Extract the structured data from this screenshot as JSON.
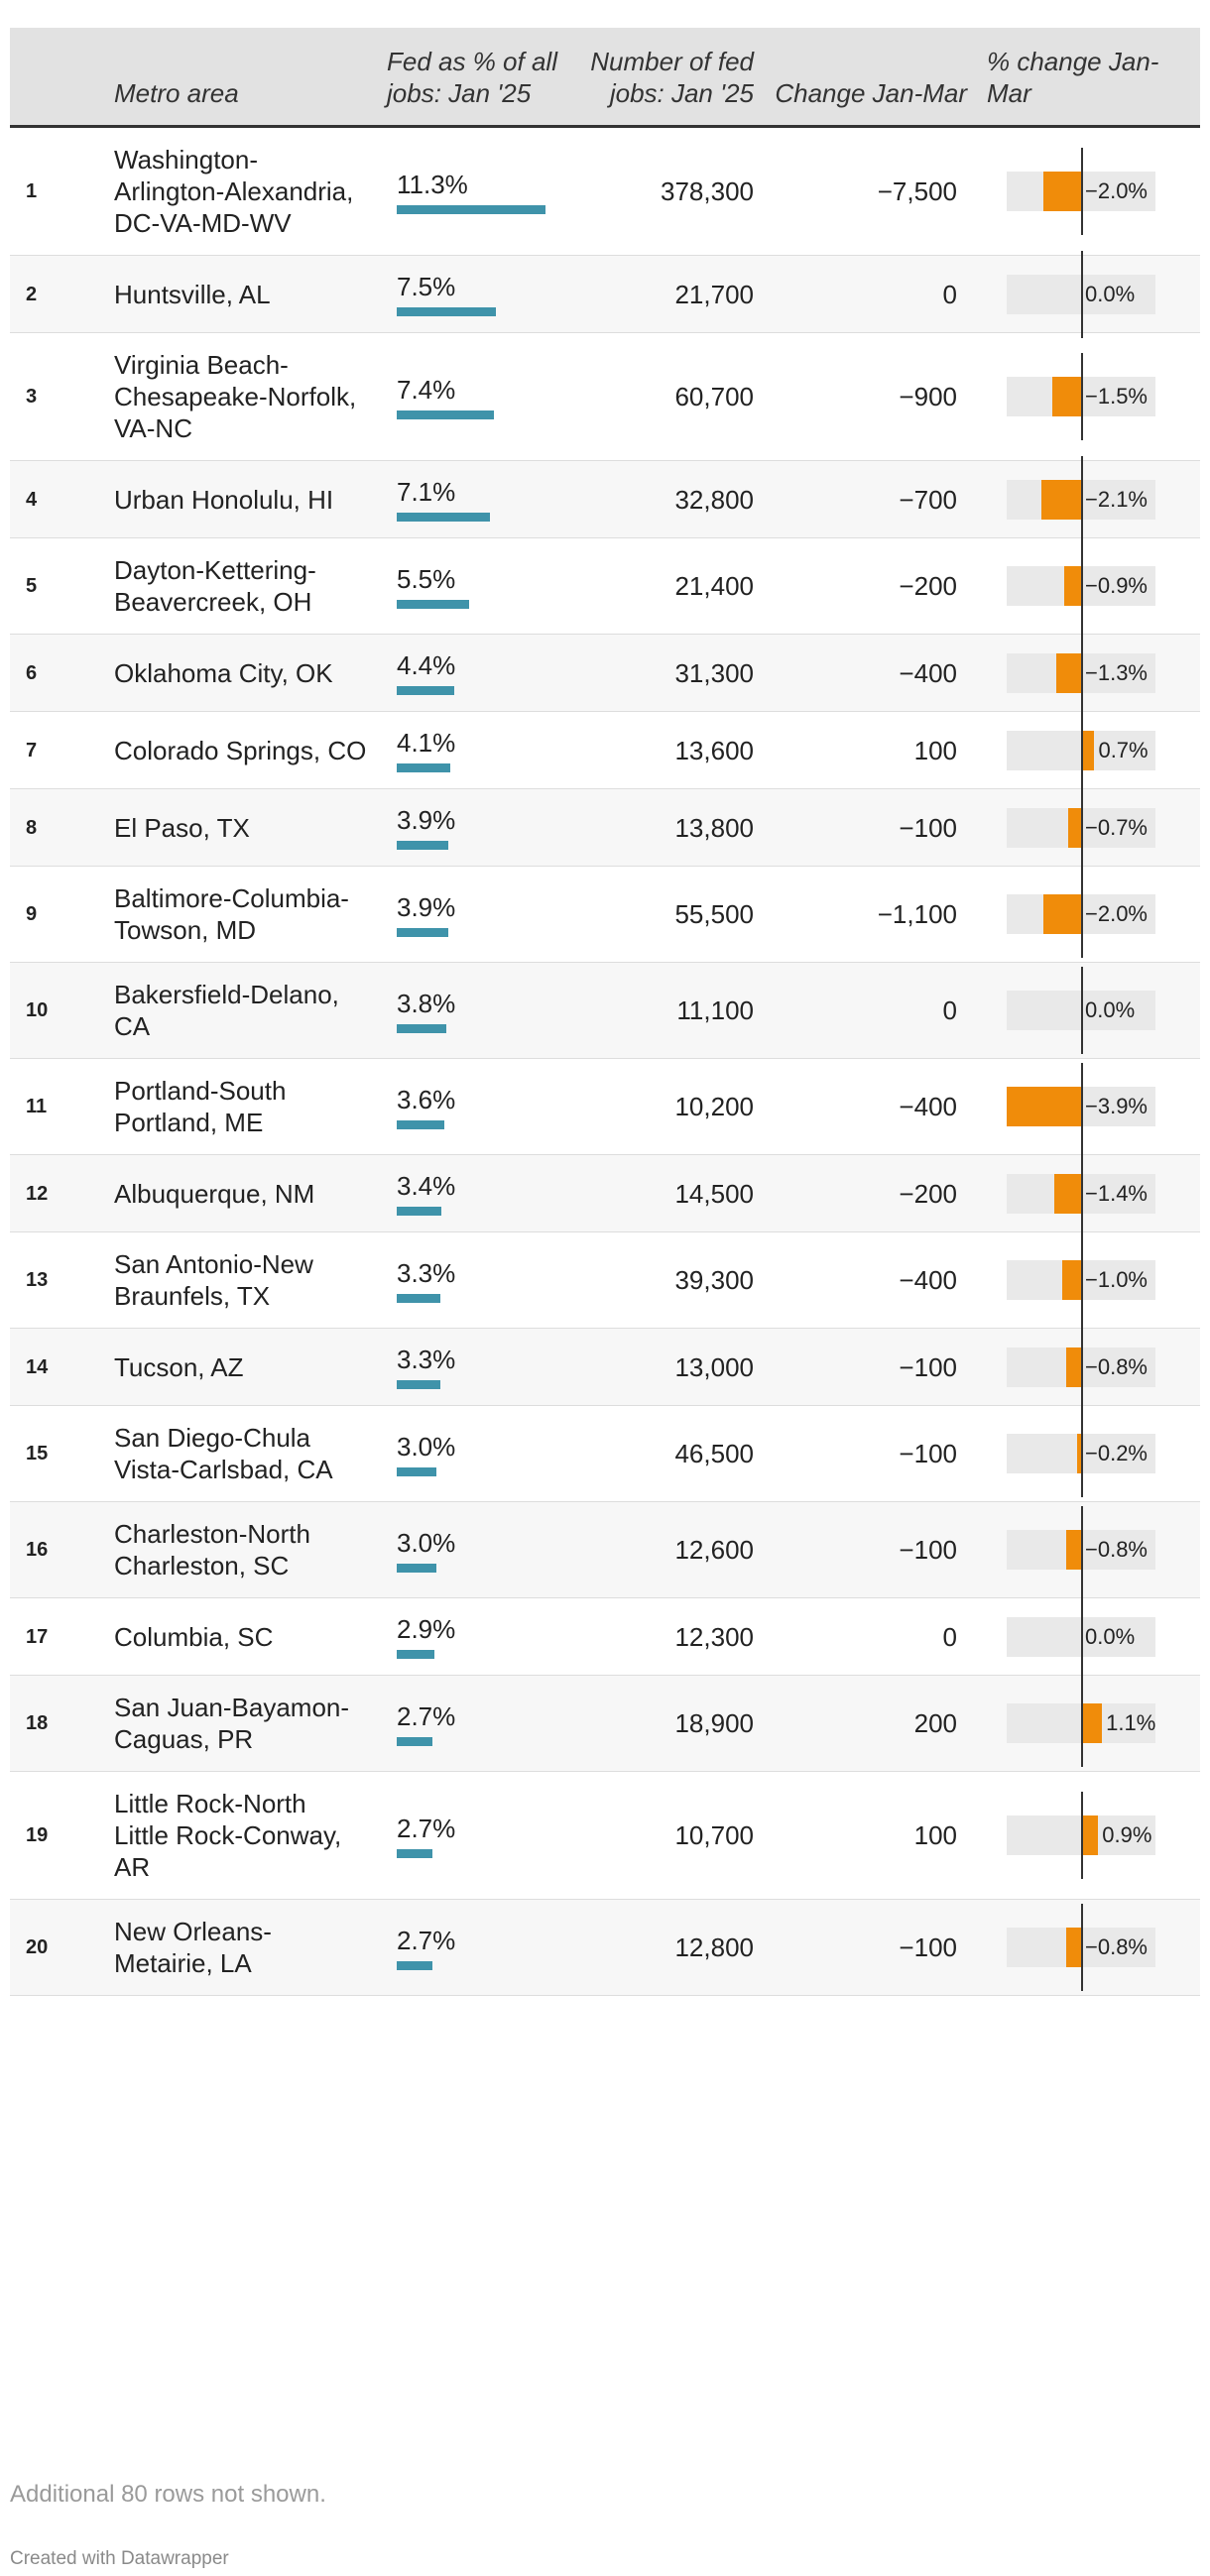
{
  "table": {
    "headers": {
      "rank": "",
      "metro": "Metro area",
      "fed_pct": "Fed as % of all jobs: Jan '25",
      "fed_jobs": "Number of fed jobs: Jan '25",
      "change": "Change Jan-Mar",
      "pct_change": "% change Jan-Mar"
    },
    "note": "Additional 80 rows not shown.",
    "credit": "Created with Datawrapper"
  },
  "colors": {
    "pct_bar": "#3f93aa",
    "change_bar": "#f08c0a",
    "header_bg": "#e2e2e2"
  },
  "chart_data": {
    "type": "table",
    "pct_bar_max": 11.3,
    "change_bar_range": [
      -3.9,
      3.9
    ],
    "rows": [
      {
        "rank": "1",
        "metro": "Washington-Arlington-Alexandria, DC-VA-MD-WV",
        "fed_pct": 11.3,
        "fed_pct_label": "11.3%",
        "fed_jobs": "378,300",
        "change": "−7,500",
        "pct_change": -2.0,
        "pct_change_label": "−2.0%"
      },
      {
        "rank": "2",
        "metro": "Huntsville, AL",
        "fed_pct": 7.5,
        "fed_pct_label": "7.5%",
        "fed_jobs": "21,700",
        "change": "0",
        "pct_change": 0.0,
        "pct_change_label": "0.0%"
      },
      {
        "rank": "3",
        "metro": "Virginia Beach-Chesapeake-Norfolk, VA-NC",
        "fed_pct": 7.4,
        "fed_pct_label": "7.4%",
        "fed_jobs": "60,700",
        "change": "−900",
        "pct_change": -1.5,
        "pct_change_label": "−1.5%"
      },
      {
        "rank": "4",
        "metro": "Urban Honolulu, HI",
        "fed_pct": 7.1,
        "fed_pct_label": "7.1%",
        "fed_jobs": "32,800",
        "change": "−700",
        "pct_change": -2.1,
        "pct_change_label": "−2.1%"
      },
      {
        "rank": "5",
        "metro": "Dayton-Kettering-Beavercreek, OH",
        "fed_pct": 5.5,
        "fed_pct_label": "5.5%",
        "fed_jobs": "21,400",
        "change": "−200",
        "pct_change": -0.9,
        "pct_change_label": "−0.9%"
      },
      {
        "rank": "6",
        "metro": "Oklahoma City, OK",
        "fed_pct": 4.4,
        "fed_pct_label": "4.4%",
        "fed_jobs": "31,300",
        "change": "−400",
        "pct_change": -1.3,
        "pct_change_label": "−1.3%"
      },
      {
        "rank": "7",
        "metro": "Colorado Springs, CO",
        "fed_pct": 4.1,
        "fed_pct_label": "4.1%",
        "fed_jobs": "13,600",
        "change": "100",
        "pct_change": 0.7,
        "pct_change_label": "0.7%"
      },
      {
        "rank": "8",
        "metro": "El Paso, TX",
        "fed_pct": 3.9,
        "fed_pct_label": "3.9%",
        "fed_jobs": "13,800",
        "change": "−100",
        "pct_change": -0.7,
        "pct_change_label": "−0.7%"
      },
      {
        "rank": "9",
        "metro": "Baltimore-Columbia-Towson, MD",
        "fed_pct": 3.9,
        "fed_pct_label": "3.9%",
        "fed_jobs": "55,500",
        "change": "−1,100",
        "pct_change": -2.0,
        "pct_change_label": "−2.0%"
      },
      {
        "rank": "10",
        "metro": "Bakersfield-Delano, CA",
        "fed_pct": 3.8,
        "fed_pct_label": "3.8%",
        "fed_jobs": "11,100",
        "change": "0",
        "pct_change": 0.0,
        "pct_change_label": "0.0%"
      },
      {
        "rank": "11",
        "metro": "Portland-South Portland, ME",
        "fed_pct": 3.6,
        "fed_pct_label": "3.6%",
        "fed_jobs": "10,200",
        "change": "−400",
        "pct_change": -3.9,
        "pct_change_label": "−3.9%"
      },
      {
        "rank": "12",
        "metro": "Albuquerque, NM",
        "fed_pct": 3.4,
        "fed_pct_label": "3.4%",
        "fed_jobs": "14,500",
        "change": "−200",
        "pct_change": -1.4,
        "pct_change_label": "−1.4%"
      },
      {
        "rank": "13",
        "metro": "San Antonio-New Braunfels, TX",
        "fed_pct": 3.3,
        "fed_pct_label": "3.3%",
        "fed_jobs": "39,300",
        "change": "−400",
        "pct_change": -1.0,
        "pct_change_label": "−1.0%"
      },
      {
        "rank": "14",
        "metro": "Tucson, AZ",
        "fed_pct": 3.3,
        "fed_pct_label": "3.3%",
        "fed_jobs": "13,000",
        "change": "−100",
        "pct_change": -0.8,
        "pct_change_label": "−0.8%"
      },
      {
        "rank": "15",
        "metro": "San Diego-Chula Vista-Carlsbad, CA",
        "fed_pct": 3.0,
        "fed_pct_label": "3.0%",
        "fed_jobs": "46,500",
        "change": "−100",
        "pct_change": -0.2,
        "pct_change_label": "−0.2%"
      },
      {
        "rank": "16",
        "metro": "Charleston-North Charleston, SC",
        "fed_pct": 3.0,
        "fed_pct_label": "3.0%",
        "fed_jobs": "12,600",
        "change": "−100",
        "pct_change": -0.8,
        "pct_change_label": "−0.8%"
      },
      {
        "rank": "17",
        "metro": "Columbia, SC",
        "fed_pct": 2.9,
        "fed_pct_label": "2.9%",
        "fed_jobs": "12,300",
        "change": "0",
        "pct_change": 0.0,
        "pct_change_label": "0.0%"
      },
      {
        "rank": "18",
        "metro": "San Juan-Bayamon-Caguas, PR",
        "fed_pct": 2.7,
        "fed_pct_label": "2.7%",
        "fed_jobs": "18,900",
        "change": "200",
        "pct_change": 1.1,
        "pct_change_label": "1.1%"
      },
      {
        "rank": "19",
        "metro": "Little Rock-North Little Rock-Conway, AR",
        "fed_pct": 2.7,
        "fed_pct_label": "2.7%",
        "fed_jobs": "10,700",
        "change": "100",
        "pct_change": 0.9,
        "pct_change_label": "0.9%"
      },
      {
        "rank": "20",
        "metro": "New Orleans-Metairie, LA",
        "fed_pct": 2.7,
        "fed_pct_label": "2.7%",
        "fed_jobs": "12,800",
        "change": "−100",
        "pct_change": -0.8,
        "pct_change_label": "−0.8%"
      }
    ]
  }
}
